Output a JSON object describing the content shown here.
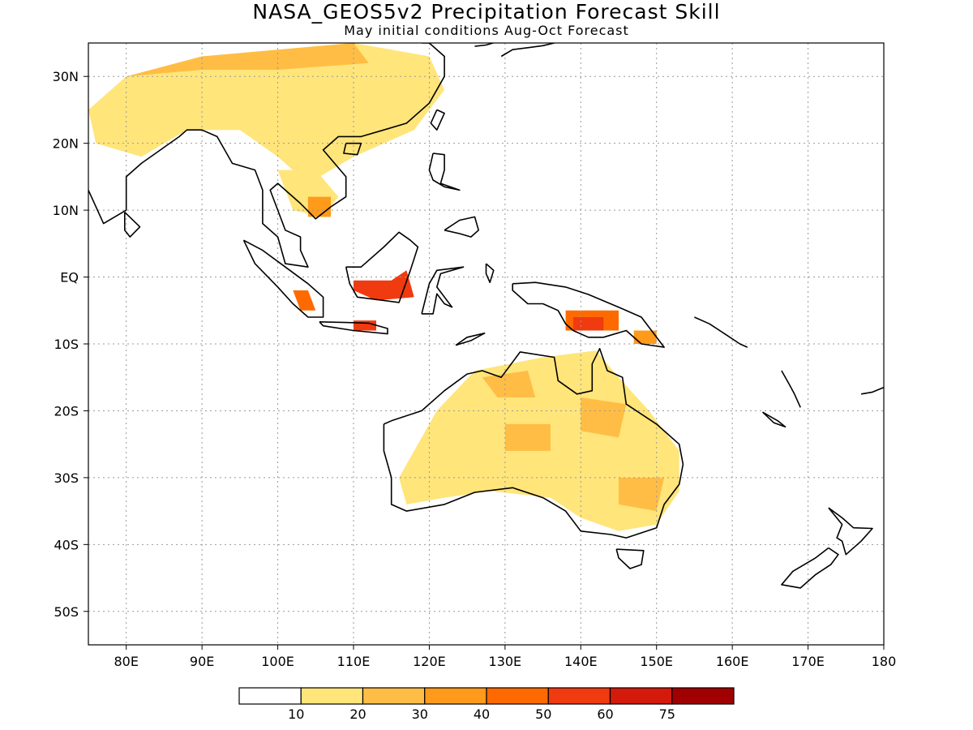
{
  "title": "NASA_GEOS5v2 Precipitation Forecast Skill",
  "subtitle": "May initial conditions  Aug-Oct Forecast",
  "map": {
    "lon_range": [
      75,
      180
    ],
    "lat_range": [
      -55,
      35
    ],
    "lat_ticks": [
      {
        "lat": 30,
        "label": "30N"
      },
      {
        "lat": 20,
        "label": "20N"
      },
      {
        "lat": 10,
        "label": "10N"
      },
      {
        "lat": 0,
        "label": "EQ"
      },
      {
        "lat": -10,
        "label": "10S"
      },
      {
        "lat": -20,
        "label": "20S"
      },
      {
        "lat": -30,
        "label": "30S"
      },
      {
        "lat": -40,
        "label": "40S"
      },
      {
        "lat": -50,
        "label": "50S"
      }
    ],
    "lon_ticks": [
      {
        "lon": 80,
        "label": "80E"
      },
      {
        "lon": 90,
        "label": "90E"
      },
      {
        "lon": 100,
        "label": "100E"
      },
      {
        "lon": 110,
        "label": "110E"
      },
      {
        "lon": 120,
        "label": "120E"
      },
      {
        "lon": 130,
        "label": "130E"
      },
      {
        "lon": 140,
        "label": "140E"
      },
      {
        "lon": 150,
        "label": "150E"
      },
      {
        "lon": 160,
        "label": "160E"
      },
      {
        "lon": 170,
        "label": "170E"
      },
      {
        "lon": 180,
        "label": "180"
      }
    ],
    "grid": true
  },
  "colorbar": {
    "colors": [
      "#ffffff",
      "#ffe57a",
      "#ffbd45",
      "#ff9a1a",
      "#ff6a00",
      "#f03a10",
      "#d41a0a",
      "#a00000"
    ],
    "labels": [
      "10",
      "20",
      "30",
      "40",
      "50",
      "60",
      "75"
    ]
  },
  "skill_regions": [
    {
      "level": 1,
      "points": [
        [
          75,
          25
        ],
        [
          80,
          30
        ],
        [
          90,
          33
        ],
        [
          100,
          34
        ],
        [
          110,
          35
        ],
        [
          120,
          33
        ],
        [
          122,
          28
        ],
        [
          118,
          22
        ],
        [
          110,
          18
        ],
        [
          104,
          14
        ],
        [
          100,
          18
        ],
        [
          95,
          22
        ],
        [
          88,
          22
        ],
        [
          82,
          18
        ],
        [
          76,
          20
        ]
      ]
    },
    {
      "level": 1,
      "points": [
        [
          100,
          16
        ],
        [
          105,
          16
        ],
        [
          108,
          12
        ],
        [
          106,
          9
        ],
        [
          102,
          10
        ]
      ]
    },
    {
      "level": 1,
      "points": [
        [
          126,
          -14
        ],
        [
          135,
          -12
        ],
        [
          142,
          -11
        ],
        [
          145,
          -15
        ],
        [
          149,
          -20
        ],
        [
          153,
          -26
        ],
        [
          153,
          -32
        ],
        [
          150,
          -37
        ],
        [
          145,
          -38
        ],
        [
          140,
          -36
        ],
        [
          136,
          -33
        ],
        [
          128,
          -32
        ],
        [
          122,
          -33
        ],
        [
          117,
          -34
        ],
        [
          116,
          -30
        ],
        [
          121,
          -20
        ]
      ]
    },
    {
      "level": 2,
      "points": [
        [
          80,
          30
        ],
        [
          90,
          33
        ],
        [
          100,
          34
        ],
        [
          110,
          35
        ],
        [
          112,
          32
        ],
        [
          100,
          31
        ],
        [
          90,
          31
        ]
      ]
    },
    {
      "level": 2,
      "points": [
        [
          127,
          -15
        ],
        [
          133,
          -14
        ],
        [
          134,
          -18
        ],
        [
          129,
          -18
        ]
      ]
    },
    {
      "level": 2,
      "points": [
        [
          130,
          -22
        ],
        [
          136,
          -22
        ],
        [
          136,
          -26
        ],
        [
          130,
          -26
        ]
      ]
    },
    {
      "level": 2,
      "points": [
        [
          140,
          -18
        ],
        [
          146,
          -19
        ],
        [
          145,
          -24
        ],
        [
          140,
          -23
        ]
      ]
    },
    {
      "level": 2,
      "points": [
        [
          145,
          -30
        ],
        [
          151,
          -30
        ],
        [
          150,
          -35
        ],
        [
          145,
          -34
        ]
      ]
    },
    {
      "level": 3,
      "points": [
        [
          104,
          12
        ],
        [
          107,
          12
        ],
        [
          107,
          9
        ],
        [
          104,
          9
        ]
      ]
    },
    {
      "level": 3,
      "points": [
        [
          147,
          -8
        ],
        [
          150,
          -8
        ],
        [
          150,
          -10
        ],
        [
          147,
          -10
        ]
      ]
    },
    {
      "level": 4,
      "points": [
        [
          102,
          -2
        ],
        [
          104,
          -2
        ],
        [
          105,
          -5
        ],
        [
          103,
          -5
        ]
      ]
    },
    {
      "level": 4,
      "points": [
        [
          138,
          -5
        ],
        [
          145,
          -5
        ],
        [
          145,
          -8
        ],
        [
          138,
          -8
        ]
      ]
    },
    {
      "level": 5,
      "points": [
        [
          110,
          -0.5
        ],
        [
          115,
          -0.5
        ],
        [
          117,
          1
        ],
        [
          118,
          -3
        ],
        [
          113,
          -3.5
        ],
        [
          110,
          -2
        ]
      ]
    },
    {
      "level": 5,
      "points": [
        [
          110,
          -6.5
        ],
        [
          113,
          -6.5
        ],
        [
          113,
          -8
        ],
        [
          110,
          -8
        ]
      ]
    },
    {
      "level": 5,
      "points": [
        [
          139,
          -6
        ],
        [
          143,
          -6
        ],
        [
          143,
          -8
        ],
        [
          139,
          -8
        ]
      ]
    }
  ],
  "coastlines": [
    {
      "name": "india",
      "points": [
        [
          75,
          13
        ],
        [
          77,
          8
        ],
        [
          80,
          10
        ],
        [
          80,
          15
        ],
        [
          82,
          17
        ],
        [
          87,
          21
        ],
        [
          88,
          22
        ],
        [
          90,
          22
        ],
        [
          92,
          21
        ],
        [
          94,
          17
        ],
        [
          97,
          16
        ],
        [
          98,
          13
        ],
        [
          98,
          8
        ],
        [
          100,
          6
        ],
        [
          101,
          2
        ],
        [
          104,
          1.5
        ],
        [
          103,
          4
        ],
        [
          103,
          6
        ],
        [
          101,
          7
        ],
        [
          100,
          10
        ],
        [
          99,
          13
        ],
        [
          100,
          14
        ],
        [
          101,
          13
        ],
        [
          103,
          11
        ],
        [
          105,
          8.7
        ],
        [
          107,
          10.5
        ],
        [
          109,
          12
        ],
        [
          109,
          15
        ],
        [
          106,
          19
        ],
        [
          108,
          21
        ],
        [
          111,
          21
        ],
        [
          114,
          22
        ],
        [
          117,
          23
        ],
        [
          120,
          26
        ],
        [
          122,
          30
        ],
        [
          122,
          33
        ],
        [
          120,
          35
        ],
        [
          119,
          35
        ]
      ]
    },
    {
      "name": "sri-lanka",
      "points": [
        [
          79.8,
          9.7
        ],
        [
          81.8,
          7.5
        ],
        [
          80.5,
          6
        ],
        [
          79.8,
          7
        ],
        [
          79.8,
          9.7
        ]
      ]
    },
    {
      "name": "sumatra",
      "points": [
        [
          95.5,
          5.5
        ],
        [
          98,
          4
        ],
        [
          101,
          1.5
        ],
        [
          104,
          -1
        ],
        [
          106,
          -3
        ],
        [
          106,
          -6
        ],
        [
          104,
          -6
        ],
        [
          102,
          -4
        ],
        [
          100,
          -1.5
        ],
        [
          97,
          2
        ],
        [
          95.5,
          5.5
        ]
      ]
    },
    {
      "name": "java",
      "points": [
        [
          105.5,
          -6.7
        ],
        [
          109,
          -6.8
        ],
        [
          112,
          -6.9
        ],
        [
          114.5,
          -7.7
        ],
        [
          114.5,
          -8.5
        ],
        [
          110,
          -8
        ],
        [
          106,
          -7.3
        ],
        [
          105.5,
          -6.7
        ]
      ]
    },
    {
      "name": "borneo",
      "points": [
        [
          109,
          1.5
        ],
        [
          111,
          1.5
        ],
        [
          114,
          4.5
        ],
        [
          116,
          6.7
        ],
        [
          117.5,
          5.5
        ],
        [
          118.5,
          4.5
        ],
        [
          117.5,
          1
        ],
        [
          116,
          -3.8
        ],
        [
          114,
          -3.5
        ],
        [
          110.5,
          -3
        ],
        [
          109.5,
          -1
        ],
        [
          109,
          1.5
        ]
      ]
    },
    {
      "name": "sulawesi",
      "points": [
        [
          119,
          -5.5
        ],
        [
          120,
          -1
        ],
        [
          121,
          1
        ],
        [
          124.5,
          1.5
        ],
        [
          121.5,
          0.5
        ],
        [
          121,
          -1.5
        ],
        [
          123,
          -4.5
        ],
        [
          122,
          -4
        ],
        [
          121,
          -2.5
        ],
        [
          120.5,
          -5.5
        ],
        [
          119,
          -5.5
        ]
      ]
    },
    {
      "name": "luzon",
      "points": [
        [
          120.5,
          18.5
        ],
        [
          122,
          18.3
        ],
        [
          122,
          16
        ],
        [
          121.5,
          14
        ],
        [
          124,
          13
        ],
        [
          122,
          13.5
        ],
        [
          120.5,
          14.5
        ],
        [
          120,
          16
        ],
        [
          120.5,
          18.5
        ]
      ]
    },
    {
      "name": "mindanao",
      "points": [
        [
          122,
          7
        ],
        [
          124,
          8.5
        ],
        [
          126,
          9
        ],
        [
          126.5,
          7
        ],
        [
          125.5,
          6
        ],
        [
          124,
          6.5
        ],
        [
          122,
          7
        ]
      ]
    },
    {
      "name": "taiwan",
      "points": [
        [
          121,
          25
        ],
        [
          122,
          24.5
        ],
        [
          121,
          22
        ],
        [
          120.2,
          23
        ],
        [
          121,
          25
        ]
      ]
    },
    {
      "name": "hainan",
      "points": [
        [
          109,
          20
        ],
        [
          111,
          20
        ],
        [
          110.5,
          18.3
        ],
        [
          108.7,
          18.5
        ],
        [
          109,
          20
        ]
      ]
    },
    {
      "name": "new-guinea",
      "points": [
        [
          131,
          -1
        ],
        [
          134,
          -0.8
        ],
        [
          138,
          -1.5
        ],
        [
          141,
          -2.6
        ],
        [
          145,
          -4.5
        ],
        [
          148,
          -6
        ],
        [
          151,
          -10.5
        ],
        [
          148,
          -10
        ],
        [
          146,
          -8
        ],
        [
          143,
          -9
        ],
        [
          141,
          -9
        ],
        [
          139,
          -8
        ],
        [
          138,
          -7
        ],
        [
          137,
          -5
        ],
        [
          135,
          -4
        ],
        [
          133,
          -4
        ],
        [
          131,
          -2
        ],
        [
          131,
          -1
        ]
      ]
    },
    {
      "name": "australia",
      "points": [
        [
          114,
          -22
        ],
        [
          114,
          -26
        ],
        [
          115,
          -30
        ],
        [
          115,
          -34
        ],
        [
          117,
          -35
        ],
        [
          122,
          -34
        ],
        [
          126,
          -32.2
        ],
        [
          131,
          -31.5
        ],
        [
          135,
          -33
        ],
        [
          138,
          -35
        ],
        [
          140,
          -38
        ],
        [
          144,
          -38.5
        ],
        [
          146,
          -39
        ],
        [
          150,
          -37.5
        ],
        [
          151,
          -34
        ],
        [
          153,
          -31
        ],
        [
          153.5,
          -28
        ],
        [
          153,
          -25
        ],
        [
          150,
          -22
        ],
        [
          146,
          -19
        ],
        [
          145.5,
          -15
        ],
        [
          143.5,
          -14
        ],
        [
          142.5,
          -10.7
        ],
        [
          141.5,
          -13
        ],
        [
          141.5,
          -17
        ],
        [
          139.5,
          -17.5
        ],
        [
          137,
          -15.5
        ],
        [
          136.5,
          -12
        ],
        [
          132,
          -11.2
        ],
        [
          129.5,
          -15
        ],
        [
          127,
          -14
        ],
        [
          125,
          -14.5
        ],
        [
          122,
          -17
        ],
        [
          119,
          -20
        ],
        [
          115,
          -21.5
        ],
        [
          114,
          -22
        ]
      ]
    },
    {
      "name": "tasmania",
      "points": [
        [
          144.7,
          -40.7
        ],
        [
          148.3,
          -40.9
        ],
        [
          148,
          -43
        ],
        [
          146.5,
          -43.6
        ],
        [
          145,
          -42
        ],
        [
          144.7,
          -40.7
        ]
      ]
    },
    {
      "name": "nz-north",
      "points": [
        [
          172.7,
          -34.5
        ],
        [
          174.5,
          -36
        ],
        [
          176,
          -37.5
        ],
        [
          178.5,
          -37.6
        ],
        [
          177,
          -39.5
        ],
        [
          175,
          -41.5
        ],
        [
          174.5,
          -39.5
        ],
        [
          173.8,
          -39
        ],
        [
          174.5,
          -37
        ],
        [
          172.7,
          -34.5
        ]
      ]
    },
    {
      "name": "nz-south",
      "points": [
        [
          172.7,
          -40.5
        ],
        [
          174,
          -41.5
        ],
        [
          173,
          -43
        ],
        [
          171,
          -44.5
        ],
        [
          169,
          -46.5
        ],
        [
          166.5,
          -46
        ],
        [
          168,
          -44
        ],
        [
          171,
          -42
        ],
        [
          172.7,
          -40.5
        ]
      ]
    },
    {
      "name": "solomons",
      "points": [
        [
          155,
          -6
        ],
        [
          157,
          -7
        ],
        [
          159,
          -8.5
        ],
        [
          161,
          -10
        ],
        [
          162,
          -10.5
        ]
      ]
    },
    {
      "name": "vanuatu",
      "points": [
        [
          166.5,
          -14
        ],
        [
          167.5,
          -16
        ],
        [
          168.2,
          -17.5
        ],
        [
          169,
          -19.5
        ]
      ]
    },
    {
      "name": "new-caledonia",
      "points": [
        [
          164,
          -20.2
        ],
        [
          166,
          -21.5
        ],
        [
          167,
          -22.4
        ],
        [
          165.5,
          -21.8
        ],
        [
          164,
          -20.2
        ]
      ]
    },
    {
      "name": "fiji",
      "points": [
        [
          177,
          -17.5
        ],
        [
          178.5,
          -17.2
        ],
        [
          180,
          -16.5
        ]
      ]
    },
    {
      "name": "japan",
      "points": [
        [
          129.5,
          33
        ],
        [
          131,
          34
        ],
        [
          133,
          34.3
        ],
        [
          135,
          34.6
        ],
        [
          136.5,
          35
        ]
      ]
    },
    {
      "name": "korea",
      "points": [
        [
          126,
          34.5
        ],
        [
          127.5,
          34.7
        ],
        [
          129,
          35.2
        ]
      ]
    },
    {
      "name": "timor",
      "points": [
        [
          123.5,
          -10.2
        ],
        [
          125,
          -9
        ],
        [
          127.3,
          -8.4
        ],
        [
          125.5,
          -9.5
        ],
        [
          123.5,
          -10.2
        ]
      ]
    },
    {
      "name": "halmahera",
      "points": [
        [
          127.5,
          2
        ],
        [
          128.5,
          1
        ],
        [
          128,
          -0.8
        ],
        [
          127.5,
          0.5
        ],
        [
          127.5,
          2
        ]
      ]
    }
  ]
}
